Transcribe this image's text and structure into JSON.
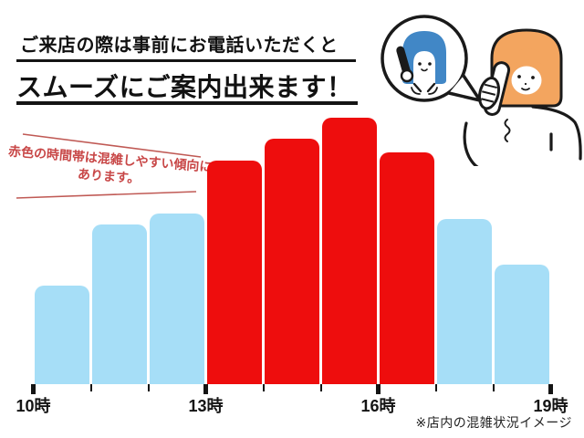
{
  "header": {
    "title_line1": "ご来店の際は事前にお電話いただくと",
    "title_line2": "スムーズにご案内出来ます！"
  },
  "annotation": {
    "line1": "赤色の時間帯は混雑しやすい傾向に",
    "line2": "あります。",
    "color": "#c84747",
    "line_color": "#c05a55"
  },
  "illustration": {
    "name": "two-women-phone-call",
    "operator_hair_color": "#4187c6",
    "customer_hair_color": "#f3a55f",
    "outline_color": "#1a1a1a"
  },
  "chart_data": {
    "type": "bar",
    "title": "",
    "xlabel": "",
    "ylabel": "",
    "categories": [
      "10-11時",
      "11-12時",
      "12-13時",
      "13-14時",
      "14-15時",
      "15-16時",
      "16-17時",
      "17-18時",
      "18-19時"
    ],
    "values": [
      37,
      60,
      64,
      84,
      92,
      100,
      87,
      62,
      45
    ],
    "crowded": [
      false,
      false,
      false,
      true,
      true,
      true,
      true,
      false,
      false
    ],
    "x_tick_labels": [
      "10時",
      "13時",
      "16時",
      "19時"
    ],
    "bar_color_normal": "#a6def7",
    "bar_color_crowded": "#ee0d0d",
    "ylim": [
      0,
      100
    ],
    "grid": false,
    "legend": false
  },
  "footer": {
    "note": "※店内の混雑状況イメージ"
  }
}
